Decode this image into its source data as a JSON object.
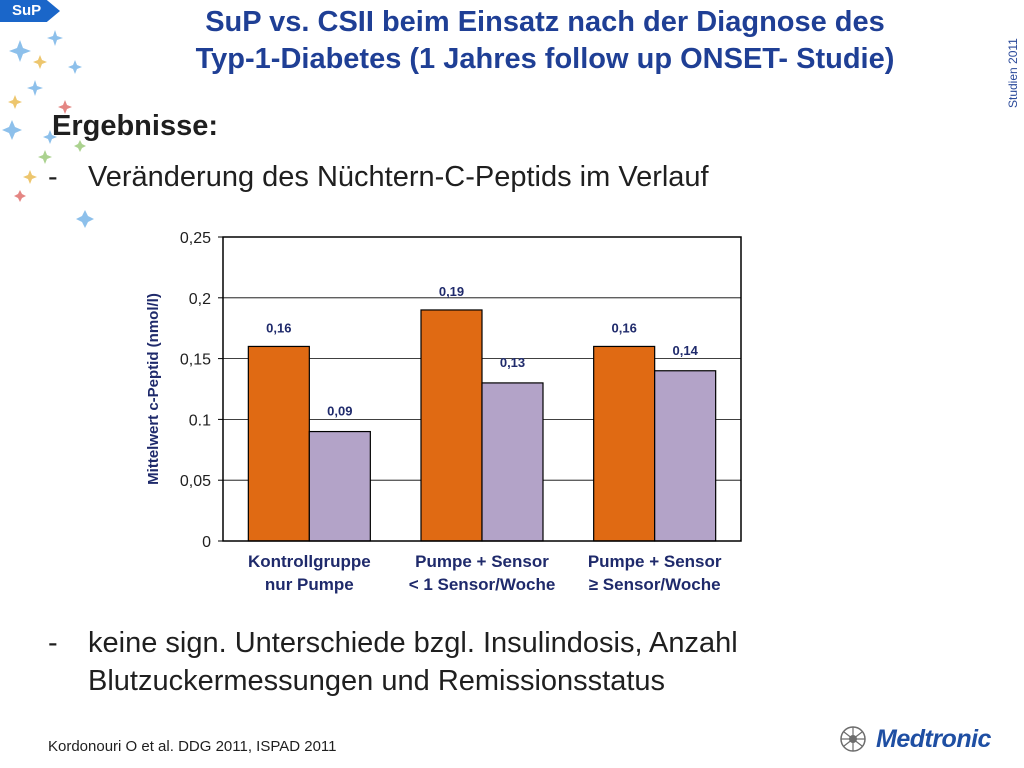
{
  "badge": "SuP",
  "title_line1": "SuP vs. CSII beim Einsatz nach der Diagnose des",
  "title_line2": "Typ-1-Diabetes (1 Jahres follow up ONSET- Studie)",
  "side_label": "Studien 2011",
  "heading": "Ergebnisse:",
  "bullets": [
    {
      "dash": "-",
      "text": "Veränderung des Nüchtern-C-Peptids im Verlauf"
    },
    {
      "dash": "-",
      "text": "keine sign. Unterschiede bzgl. Insulindosis, Anzahl Blutzuckermessungen und Remissionsstatus"
    }
  ],
  "footer": "Kordonouri O et al. DDG 2011, ISPAD 2011",
  "logo": {
    "text": "Medtronic",
    "icon": "medtronic-logo-icon"
  },
  "colors": {
    "title": "#1f3f95",
    "series_orange": "#e06a13",
    "series_lilac": "#b3a3c8",
    "badge": "#1a66c9"
  },
  "chart_data": {
    "type": "bar",
    "categories": [
      [
        "Kontrollgruppe",
        "nur Pumpe"
      ],
      [
        "Pumpe + Sensor",
        "< 1 Sensor/Woche"
      ],
      [
        "Pumpe + Sensor",
        "≥ Sensor/Woche"
      ]
    ],
    "series": [
      {
        "values": [
          0.16,
          0.19,
          0.16
        ],
        "labels": [
          "0,16",
          "0,19",
          "0,16"
        ],
        "color": "#e06a13"
      },
      {
        "values": [
          0.09,
          0.13,
          0.14
        ],
        "labels": [
          "0,09",
          "0,13",
          "0,14"
        ],
        "color": "#b3a3c8"
      }
    ],
    "ylabel": "Mittelwert c-Peptid (nmol/l)",
    "ylim": [
      0,
      0.25
    ],
    "yticks": [
      0,
      0.05,
      0.1,
      0.15,
      0.2,
      0.25
    ],
    "ytick_labels": [
      "0",
      "0,05",
      "0.1",
      "0,15",
      "0,2",
      "0,25"
    ],
    "grid": true,
    "legend": "none"
  }
}
